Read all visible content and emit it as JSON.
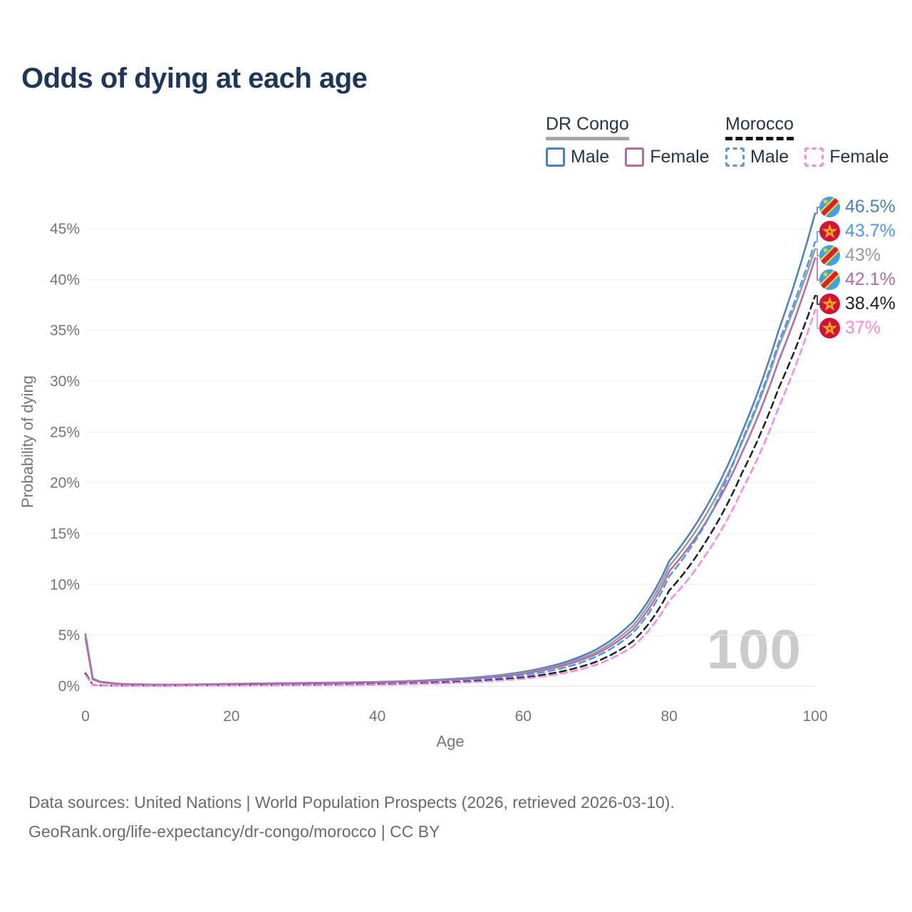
{
  "title": "Odds of dying at each age",
  "watermark": "100",
  "colors": {
    "title_text": "#1e3756",
    "legend_text": "#24344d",
    "axis_text": "#757575",
    "grid": "#eeeeee",
    "grid_zero": "#e0e0e0",
    "watermark": "#cbcbcb",
    "footer_text": "#6a6a6a"
  },
  "legend": {
    "groups": [
      {
        "label": "DR Congo",
        "line_style": "solid",
        "underline_color": "#a6a6a6",
        "items": [
          {
            "label": "Male",
            "color": "#4a7fc1"
          },
          {
            "label": "Female",
            "color": "#b16ba6"
          }
        ]
      },
      {
        "label": "Morocco",
        "line_style": "dashed",
        "underline_color": "#141414",
        "items": [
          {
            "label": "Male",
            "color": "#4a97f2"
          },
          {
            "label": "Female",
            "color": "#fb87e3"
          }
        ]
      }
    ]
  },
  "footer": {
    "line1": "Data sources: United Nations | World Population Prospects (2026, retrieved 2026-03-10).",
    "line2": "GeoRank.org/life-expectancy/dr-congo/morocco | CC BY"
  },
  "chart_data": {
    "type": "line",
    "title": "Odds of dying at each age",
    "xlabel": "Age",
    "ylabel": "Probability of dying",
    "xlim": [
      0,
      100
    ],
    "ylim_percent": [
      0,
      48
    ],
    "grid": "horizontal",
    "legend_position": "top-right",
    "x_tick_values": [
      0,
      20,
      40,
      60,
      80,
      100
    ],
    "x_tick_labels": [
      "0",
      "20",
      "40",
      "60",
      "80",
      "100"
    ],
    "y_tick_values": [
      0,
      5,
      10,
      15,
      20,
      25,
      30,
      35,
      40,
      45
    ],
    "y_tick_labels": [
      "0%",
      "5%",
      "10%",
      "15%",
      "20%",
      "25%",
      "30%",
      "35%",
      "40%",
      "45%"
    ],
    "ages": [
      0,
      1,
      2,
      5,
      10,
      15,
      20,
      25,
      30,
      35,
      40,
      45,
      50,
      55,
      60,
      65,
      70,
      75,
      80,
      85,
      90,
      95,
      100
    ],
    "series": [
      {
        "name": "DR Congo Male",
        "country": "DR Congo",
        "flag": "dr-congo",
        "sex": "Male",
        "color": "#4a7fc1",
        "dash": "solid",
        "end_label": "46.5%",
        "values": [
          5.1,
          0.75,
          0.45,
          0.22,
          0.15,
          0.17,
          0.23,
          0.28,
          0.32,
          0.36,
          0.42,
          0.52,
          0.7,
          0.95,
          1.4,
          2.2,
          3.6,
          6.3,
          12.3,
          17.5,
          25,
          35,
          46.5
        ]
      },
      {
        "name": "DR Congo Both sexes",
        "country": "DR Congo",
        "flag": "dr-congo",
        "sex": "Both sexes",
        "color": "#9b9b9b",
        "dash": "solid",
        "end_label": "43%",
        "values": [
          4.9,
          0.7,
          0.42,
          0.2,
          0.14,
          0.16,
          0.21,
          0.26,
          0.3,
          0.34,
          0.4,
          0.49,
          0.65,
          0.9,
          1.3,
          2.05,
          3.35,
          5.9,
          11.8,
          16.8,
          24,
          33.4,
          43
        ]
      },
      {
        "name": "DR Congo Female",
        "country": "DR Congo",
        "flag": "dr-congo",
        "sex": "Female",
        "color": "#b16ba6",
        "dash": "solid",
        "end_label": "42.1%",
        "values": [
          4.7,
          0.65,
          0.4,
          0.19,
          0.13,
          0.15,
          0.19,
          0.23,
          0.27,
          0.31,
          0.37,
          0.46,
          0.61,
          0.84,
          1.22,
          1.92,
          3.15,
          5.55,
          11.3,
          16.1,
          23,
          32,
          42.1
        ]
      },
      {
        "name": "Morocco Male",
        "country": "Morocco",
        "flag": "morocco",
        "sex": "Male",
        "color": "#4a97f2",
        "dash": "dashed",
        "end_label": "43.7%",
        "values": [
          1.3,
          0.12,
          0.08,
          0.05,
          0.04,
          0.06,
          0.09,
          0.11,
          0.13,
          0.16,
          0.21,
          0.3,
          0.45,
          0.7,
          1.05,
          1.7,
          2.9,
          5.2,
          10.8,
          16,
          24.2,
          33.8,
          43.7
        ]
      },
      {
        "name": "Morocco Both sexes",
        "country": "Morocco",
        "flag": "morocco",
        "sex": "Both sexes",
        "color": "#1f1f1f",
        "dash": "dashed",
        "end_label": "38.4%",
        "values": [
          1.2,
          0.11,
          0.07,
          0.045,
          0.035,
          0.05,
          0.07,
          0.09,
          0.11,
          0.13,
          0.17,
          0.24,
          0.36,
          0.55,
          0.85,
          1.4,
          2.4,
          4.4,
          9.4,
          14.2,
          21,
          29.3,
          38.4
        ]
      },
      {
        "name": "Morocco Female",
        "country": "Morocco",
        "flag": "morocco",
        "sex": "Female",
        "color": "#fb87e3",
        "dash": "dashed",
        "end_label": "37%",
        "values": [
          1.1,
          0.1,
          0.06,
          0.04,
          0.03,
          0.04,
          0.05,
          0.07,
          0.09,
          0.11,
          0.14,
          0.2,
          0.3,
          0.47,
          0.73,
          1.2,
          2.1,
          3.9,
          8.4,
          12.9,
          19.3,
          27.4,
          37
        ]
      }
    ]
  }
}
